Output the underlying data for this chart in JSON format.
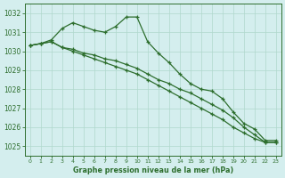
{
  "title": "Graphe pression niveau de la mer (hPa)",
  "background_color": "#d4eeee",
  "grid_color": "#b0d8cc",
  "line_color": "#2d6e2d",
  "xlim": [
    -0.5,
    23.5
  ],
  "ylim": [
    1024.5,
    1032.5
  ],
  "yticks": [
    1025,
    1026,
    1027,
    1028,
    1029,
    1030,
    1031,
    1032
  ],
  "xticks": [
    0,
    1,
    2,
    3,
    4,
    5,
    6,
    7,
    8,
    9,
    10,
    11,
    12,
    13,
    14,
    15,
    16,
    17,
    18,
    19,
    20,
    21,
    22,
    23
  ],
  "series": [
    [
      1030.3,
      1030.4,
      1030.6,
      1031.2,
      1031.5,
      1031.3,
      1031.1,
      1031.0,
      1031.3,
      1031.8,
      1031.8,
      1030.5,
      1029.9,
      1029.4,
      1028.8,
      1028.3,
      1028.0,
      1027.9,
      1027.5,
      1026.8,
      1026.2,
      1025.9,
      1025.3,
      1025.3
    ],
    [
      1030.3,
      1030.4,
      1030.5,
      1030.2,
      1030.1,
      1029.9,
      1029.8,
      1029.6,
      1029.5,
      1029.3,
      1029.1,
      1028.8,
      1028.5,
      1028.3,
      1028.0,
      1027.8,
      1027.5,
      1027.2,
      1026.9,
      1026.5,
      1026.0,
      1025.6,
      1025.2,
      1025.2
    ],
    [
      1030.3,
      1030.4,
      1030.5,
      1030.2,
      1030.0,
      1029.8,
      1029.6,
      1029.4,
      1029.2,
      1029.0,
      1028.8,
      1028.5,
      1028.2,
      1027.9,
      1027.6,
      1027.3,
      1027.0,
      1026.7,
      1026.4,
      1026.0,
      1025.7,
      1025.4,
      1025.2,
      1025.2
    ]
  ],
  "marker": "+",
  "marker_size": 3.5,
  "line_width": 0.9
}
